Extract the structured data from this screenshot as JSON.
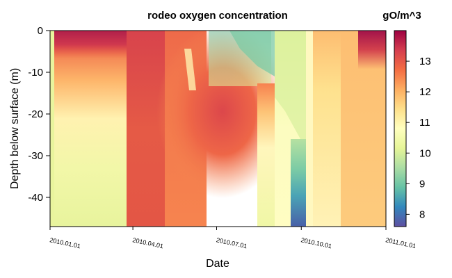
{
  "chart_data": {
    "type": "heatmap",
    "title": "rodeo oxygen concentration",
    "xlabel": "Date",
    "ylabel": "Depth below surface (m)",
    "colorbar_label": "gO/m^3",
    "colorbar_ticks": [
      8,
      9,
      10,
      11,
      12,
      13
    ],
    "colorbar_range": [
      7.6,
      14.0
    ],
    "color_scale": [
      "#5e4fa2",
      "#3288bd",
      "#66c2a5",
      "#abdda4",
      "#e6f598",
      "#ffffbf",
      "#fee08b",
      "#fdae61",
      "#f46d43",
      "#d53e4f",
      "#9e0142"
    ],
    "x_ticks": [
      "2010.01.01",
      "2010.04.01",
      "2010.07.01",
      "2010.10.01",
      "2011.01.01"
    ],
    "xlim": [
      "2010-01-01",
      "2011-01-01"
    ],
    "y_ticks": [
      0,
      -10,
      -20,
      -30,
      -40
    ],
    "ylim": [
      -47,
      0
    ]
  }
}
